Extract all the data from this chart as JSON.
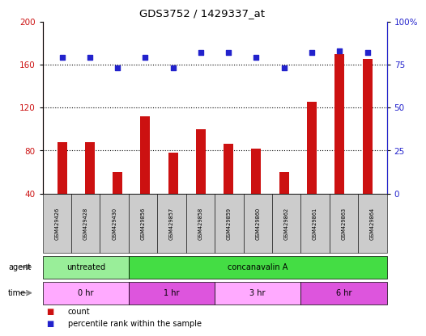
{
  "title": "GDS3752 / 1429337_at",
  "samples": [
    "GSM429426",
    "GSM429428",
    "GSM429430",
    "GSM429856",
    "GSM429857",
    "GSM429858",
    "GSM429859",
    "GSM429860",
    "GSM429862",
    "GSM429861",
    "GSM429863",
    "GSM429864"
  ],
  "counts": [
    88,
    88,
    60,
    112,
    78,
    100,
    86,
    82,
    60,
    125,
    170,
    165
  ],
  "percentile_ranks": [
    79,
    79,
    73,
    79,
    73,
    82,
    82,
    79,
    73,
    82,
    83,
    82
  ],
  "ylim_left": [
    40,
    200
  ],
  "ylim_right": [
    0,
    100
  ],
  "yticks_left": [
    40,
    80,
    120,
    160,
    200
  ],
  "yticks_right": [
    0,
    25,
    50,
    75,
    100
  ],
  "bar_color": "#cc1111",
  "dot_color": "#2222cc",
  "agent_row": [
    {
      "label": "untreated",
      "start": 0,
      "end": 3,
      "color": "#99ee99"
    },
    {
      "label": "concanavalin A",
      "start": 3,
      "end": 12,
      "color": "#44dd44"
    }
  ],
  "time_row": [
    {
      "label": "0 hr",
      "start": 0,
      "end": 3,
      "color": "#ffaaff"
    },
    {
      "label": "1 hr",
      "start": 3,
      "end": 6,
      "color": "#dd55dd"
    },
    {
      "label": "3 hr",
      "start": 6,
      "end": 9,
      "color": "#ffaaff"
    },
    {
      "label": "6 hr",
      "start": 9,
      "end": 12,
      "color": "#dd55dd"
    }
  ],
  "legend_count_color": "#cc1111",
  "legend_dot_color": "#2222cc",
  "bg_color": "#ffffff",
  "tick_bg_color": "#cccccc",
  "bar_width": 0.35
}
